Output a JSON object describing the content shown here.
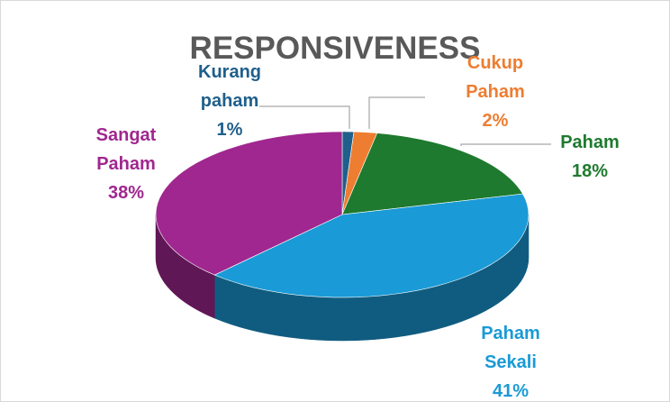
{
  "chart_data": {
    "type": "pie",
    "title": "RESPONSIVENESS",
    "categories": [
      "Kurang paham",
      "Cukup Paham",
      "Paham",
      "Paham Sekali",
      "Sangat Paham"
    ],
    "values": [
      1,
      2,
      18,
      41,
      38
    ],
    "value_labels": [
      "1%",
      "2%",
      "18%",
      "41%",
      "38%"
    ],
    "colors": [
      "#1f5f8b",
      "#ed7d31",
      "#1e7a2e",
      "#1a9ad6",
      "#a0278f"
    ]
  }
}
